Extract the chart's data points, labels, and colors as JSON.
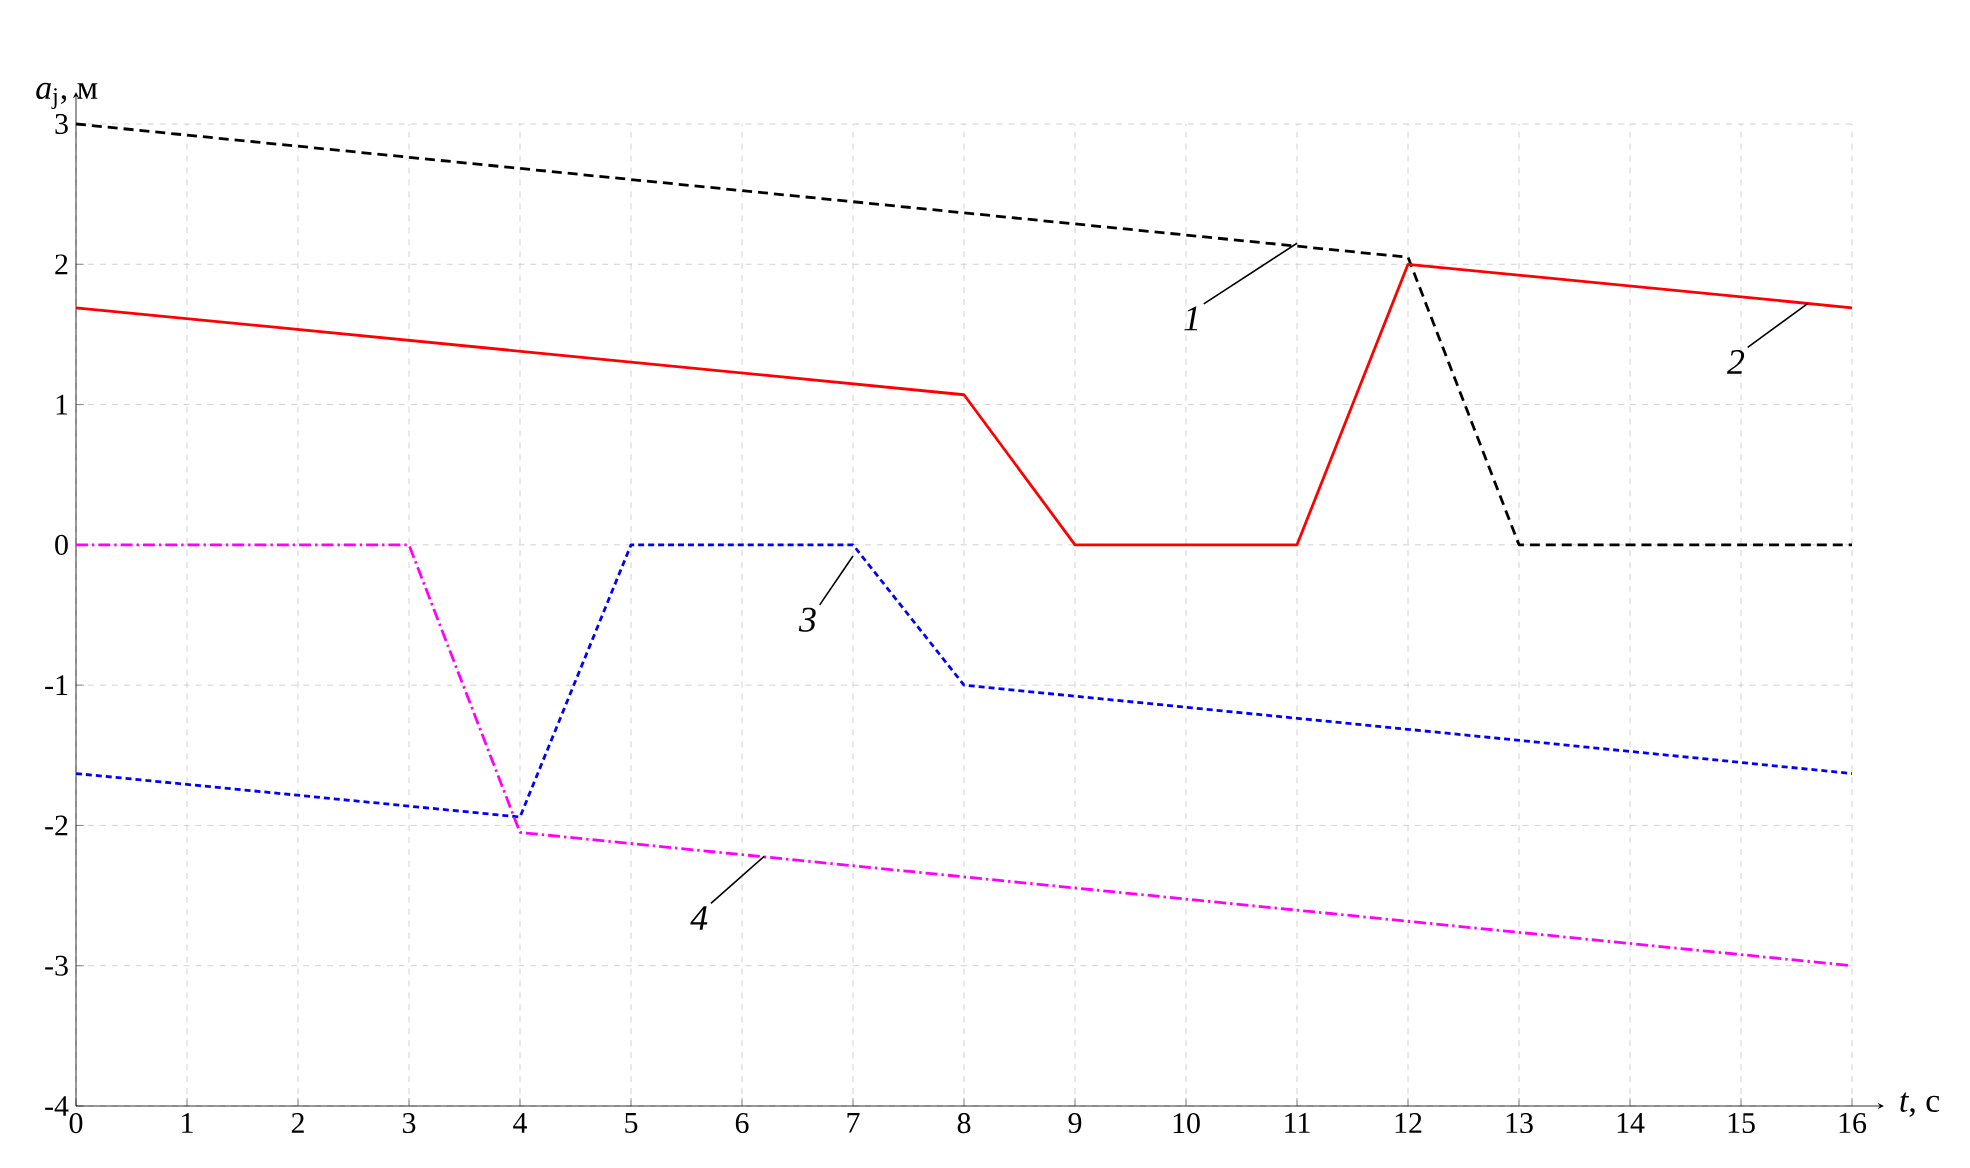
{
  "chart_data": {
    "type": "line",
    "xlabel": "*t*, с",
    "ylabel": "*a*$_{j}$, м",
    "xlim": [
      0,
      16
    ],
    "ylim": [
      -4,
      3
    ],
    "xticks": [
      0,
      1,
      2,
      3,
      4,
      5,
      6,
      7,
      8,
      9,
      10,
      11,
      12,
      13,
      14,
      15,
      16
    ],
    "yticks": [
      -4,
      -3,
      -2,
      -1,
      0,
      1,
      2,
      3
    ],
    "grid": true,
    "marker": "none",
    "series": [
      {
        "color": "#000000",
        "line_style": "dashed",
        "x": [
          0,
          12,
          13,
          16
        ],
        "values": [
          3,
          2.05,
          0,
          0
        ]
      },
      {
        "color": "#ff0000",
        "line_style": "solid",
        "x": [
          0,
          8,
          9,
          11,
          12,
          16
        ],
        "values": [
          1.69,
          1.07,
          0,
          0,
          2.0,
          1.69
        ]
      },
      {
        "color": "#0000ff",
        "line_style": "dotted",
        "x": [
          0,
          4,
          5,
          7,
          8,
          16
        ],
        "values": [
          -1.63,
          -1.94,
          0,
          0,
          -1.0,
          -1.63
        ]
      },
      {
        "color": "#ff00ff",
        "line_style": "dashdot",
        "x": [
          0,
          3,
          4,
          16
        ],
        "values": [
          0,
          0,
          -2.05,
          -3.0
        ]
      }
    ],
    "annotations": [
      {
        "text": "1",
        "x": 11,
        "y": 2.15
      },
      {
        "text": "2",
        "x": 15.6,
        "y": 1.72
      },
      {
        "text": "3",
        "x": 7,
        "y": -0.08
      },
      {
        "text": "4",
        "x": 6.2,
        "y": -2.22
      }
    ]
  }
}
